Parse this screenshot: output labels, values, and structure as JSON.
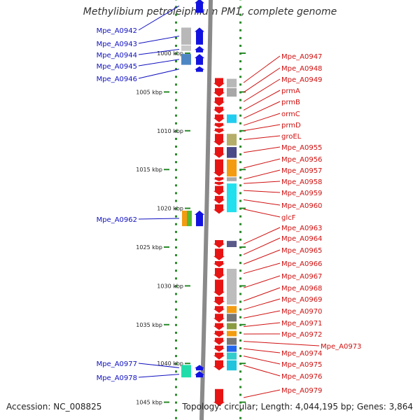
{
  "title": "Methylibium petroleiphilum PM1, complete genome",
  "footer": {
    "accession": "Accession: NC_008825",
    "summary": "Topology: circular; Length: 4,044,195 bp; Genes: 3,864"
  },
  "colors": {
    "left_strand": "#1212e0",
    "right_strand": "#e81414",
    "left_label": "#1010c0",
    "right_label": "#d01010",
    "backbone": "#8a8a8a",
    "ticks": "#2a8a2a"
  },
  "scale": {
    "unit": "kbp",
    "tick_labels": [
      "1000 kbp",
      "1005 kbp",
      "1010 kbp",
      "1015 kbp",
      "1020 kbp",
      "1025 kbp",
      "1030 kbp",
      "1035 kbp",
      "1040 kbp",
      "1045 kbp"
    ],
    "tick_values": [
      1000,
      1005,
      1010,
      1015,
      1020,
      1025,
      1030,
      1035,
      1040,
      1045
    ]
  },
  "left_labels": [
    "Mpe_A0942",
    "Mpe_A0943",
    "Mpe_A0944",
    "Mpe_A0945",
    "Mpe_A0946",
    "Mpe_A0962",
    "Mpe_A0977",
    "Mpe_A0978"
  ],
  "right_labels": [
    "Mpe_A0947",
    "Mpe_A0948",
    "Mpe_A0949",
    "prmA",
    "prmB",
    "ormC",
    "prmD",
    "groEL",
    "Mpe_A0955",
    "Mpe_A0956",
    "Mpe_A0957",
    "Mpe_A0958",
    "Mpe_A0959",
    "Mpe_A0960",
    "glcF",
    "Mpe_A0963",
    "Mpe_A0964",
    "Mpe_A0965",
    "Mpe_A0966",
    "Mpe_A0967",
    "Mpe_A0968",
    "Mpe_A0969",
    "Mpe_A0970",
    "Mpe_A0971",
    "Mpe_A0972",
    "Mpe_A0973",
    "Mpe_A0974",
    "Mpe_A0975",
    "Mpe_A0976",
    "Mpe_A0979"
  ],
  "left_genes": [
    {
      "start": 993.0,
      "end": 994.8
    },
    {
      "start": 996.7,
      "end": 998.9
    },
    {
      "start": 999.1,
      "end": 999.9
    },
    {
      "start": 1000.1,
      "end": 1001.5
    },
    {
      "start": 1001.7,
      "end": 1002.4
    },
    {
      "start": 1020.3,
      "end": 1022.3
    },
    {
      "start": 1040.2,
      "end": 1040.9
    },
    {
      "start": 1041.0,
      "end": 1041.8
    }
  ],
  "right_genes": [
    {
      "start": 1003.2,
      "end": 1004.4
    },
    {
      "start": 1004.5,
      "end": 1005.6
    },
    {
      "start": 1005.7,
      "end": 1006.8
    },
    {
      "start": 1006.9,
      "end": 1007.8
    },
    {
      "start": 1007.9,
      "end": 1008.9
    },
    {
      "start": 1009.0,
      "end": 1009.6
    },
    {
      "start": 1009.7,
      "end": 1010.3
    },
    {
      "start": 1010.4,
      "end": 1011.9
    },
    {
      "start": 1012.1,
      "end": 1013.5
    },
    {
      "start": 1013.7,
      "end": 1015.9
    },
    {
      "start": 1016.0,
      "end": 1016.5
    },
    {
      "start": 1016.6,
      "end": 1017.0
    },
    {
      "start": 1017.1,
      "end": 1018.3
    },
    {
      "start": 1018.4,
      "end": 1019.4
    },
    {
      "start": 1019.5,
      "end": 1020.7
    },
    {
      "start": 1024.1,
      "end": 1025.1
    },
    {
      "start": 1025.2,
      "end": 1026.7
    },
    {
      "start": 1026.8,
      "end": 1027.6
    },
    {
      "start": 1027.7,
      "end": 1029.1
    },
    {
      "start": 1029.2,
      "end": 1031.3
    },
    {
      "start": 1031.4,
      "end": 1032.5
    },
    {
      "start": 1032.6,
      "end": 1033.5
    },
    {
      "start": 1033.6,
      "end": 1034.7
    },
    {
      "start": 1034.8,
      "end": 1035.7
    },
    {
      "start": 1035.8,
      "end": 1036.6
    },
    {
      "start": 1036.7,
      "end": 1037.6
    },
    {
      "start": 1037.7,
      "end": 1038.5
    },
    {
      "start": 1038.6,
      "end": 1039.5
    },
    {
      "start": 1039.6,
      "end": 1040.9
    },
    {
      "start": 1043.3,
      "end": 1045.5
    }
  ],
  "annotation_blocks": {
    "left": [
      {
        "start": 996.7,
        "end": 998.9,
        "color": "#b8b8b8"
      },
      {
        "start": 999.0,
        "end": 999.7,
        "color": "#c8c8c8"
      },
      {
        "start": 1000.1,
        "end": 1001.5,
        "color": "#4e86c4"
      },
      {
        "start": 1020.3,
        "end": 1022.3,
        "color": "#f39c12"
      },
      {
        "start": 1020.3,
        "end": 1022.3,
        "color": "#55bb33"
      },
      {
        "start": 1040.2,
        "end": 1041.8,
        "color": "#22ddaa"
      }
    ],
    "right": [
      {
        "start": 1003.3,
        "end": 1004.4,
        "color": "#b8b8b8"
      },
      {
        "start": 1004.5,
        "end": 1005.6,
        "color": "#a8a8a8"
      },
      {
        "start": 1007.9,
        "end": 1009.0,
        "color": "#22ccee"
      },
      {
        "start": 1010.4,
        "end": 1011.9,
        "color": "#b5ad6a"
      },
      {
        "start": 1012.1,
        "end": 1013.5,
        "color": "#4a4a88"
      },
      {
        "start": 1013.7,
        "end": 1015.9,
        "color": "#f39c12"
      },
      {
        "start": 1016.0,
        "end": 1016.5,
        "color": "#aaaaaa"
      },
      {
        "start": 1016.8,
        "end": 1020.5,
        "color": "#22e0ee"
      },
      {
        "start": 1024.2,
        "end": 1025.0,
        "color": "#5a5a8a"
      },
      {
        "start": 1027.8,
        "end": 1032.4,
        "color": "#bdbdbd"
      },
      {
        "start": 1032.6,
        "end": 1033.5,
        "color": "#f39c12"
      },
      {
        "start": 1033.6,
        "end": 1034.6,
        "color": "#777777"
      },
      {
        "start": 1034.8,
        "end": 1035.6,
        "color": "#8a9a40"
      },
      {
        "start": 1035.8,
        "end": 1036.5,
        "color": "#f39c12"
      },
      {
        "start": 1036.7,
        "end": 1037.6,
        "color": "#777777"
      },
      {
        "start": 1037.7,
        "end": 1038.5,
        "color": "#2266ee"
      },
      {
        "start": 1038.6,
        "end": 1039.5,
        "color": "#33cccc"
      },
      {
        "start": 1039.6,
        "end": 1040.9,
        "color": "#22c4dd"
      }
    ]
  },
  "view_range_kbp": [
    993,
    1047
  ]
}
